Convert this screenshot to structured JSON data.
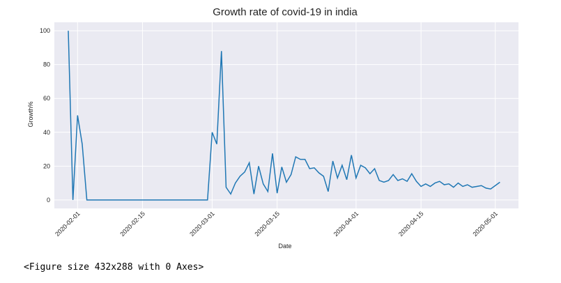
{
  "chart_data": {
    "type": "line",
    "title": "Growth rate of covid-19 in india",
    "xlabel": "Date",
    "ylabel": "Growth%",
    "grid": true,
    "series_color": "#1f77b4",
    "background_color": "#eaeaf2",
    "x_start": "2020-01-30",
    "xlim": [
      "2020-01-27",
      "2020-05-06"
    ],
    "ylim": [
      -5,
      105
    ],
    "x_ticks": [
      "2020-02-01",
      "2020-02-15",
      "2020-03-01",
      "2020-03-15",
      "2020-04-01",
      "2020-04-15",
      "2020-05-01"
    ],
    "y_ticks": [
      0,
      20,
      40,
      60,
      80,
      100
    ],
    "values": [
      100,
      0,
      50,
      33,
      0,
      0,
      0,
      0,
      0,
      0,
      0,
      0,
      0,
      0,
      0,
      0,
      0,
      0,
      0,
      0,
      0,
      0,
      0,
      0,
      0,
      0,
      0,
      0,
      0,
      0,
      0,
      40,
      33,
      88,
      7.5,
      3.5,
      10,
      14,
      16.5,
      22,
      3.5,
      20,
      9.5,
      5,
      27.5,
      4,
      19.5,
      10.5,
      15,
      25.5,
      24,
      24,
      18.5,
      19,
      16,
      14,
      5,
      23,
      13,
      20.5,
      12,
      26.5,
      13,
      20.5,
      19,
      15.5,
      18.5,
      11.5,
      10.5,
      11.5,
      15,
      11.5,
      12.5,
      11,
      15.5,
      11,
      8,
      9.5,
      8,
      10,
      11,
      9,
      9.5,
      7.5,
      10,
      8,
      9,
      7.5,
      8,
      8.5,
      7,
      6.5,
      8.5,
      10.5
    ]
  },
  "footer": {
    "figure_text": "<Figure size 432x288 with 0 Axes>"
  }
}
